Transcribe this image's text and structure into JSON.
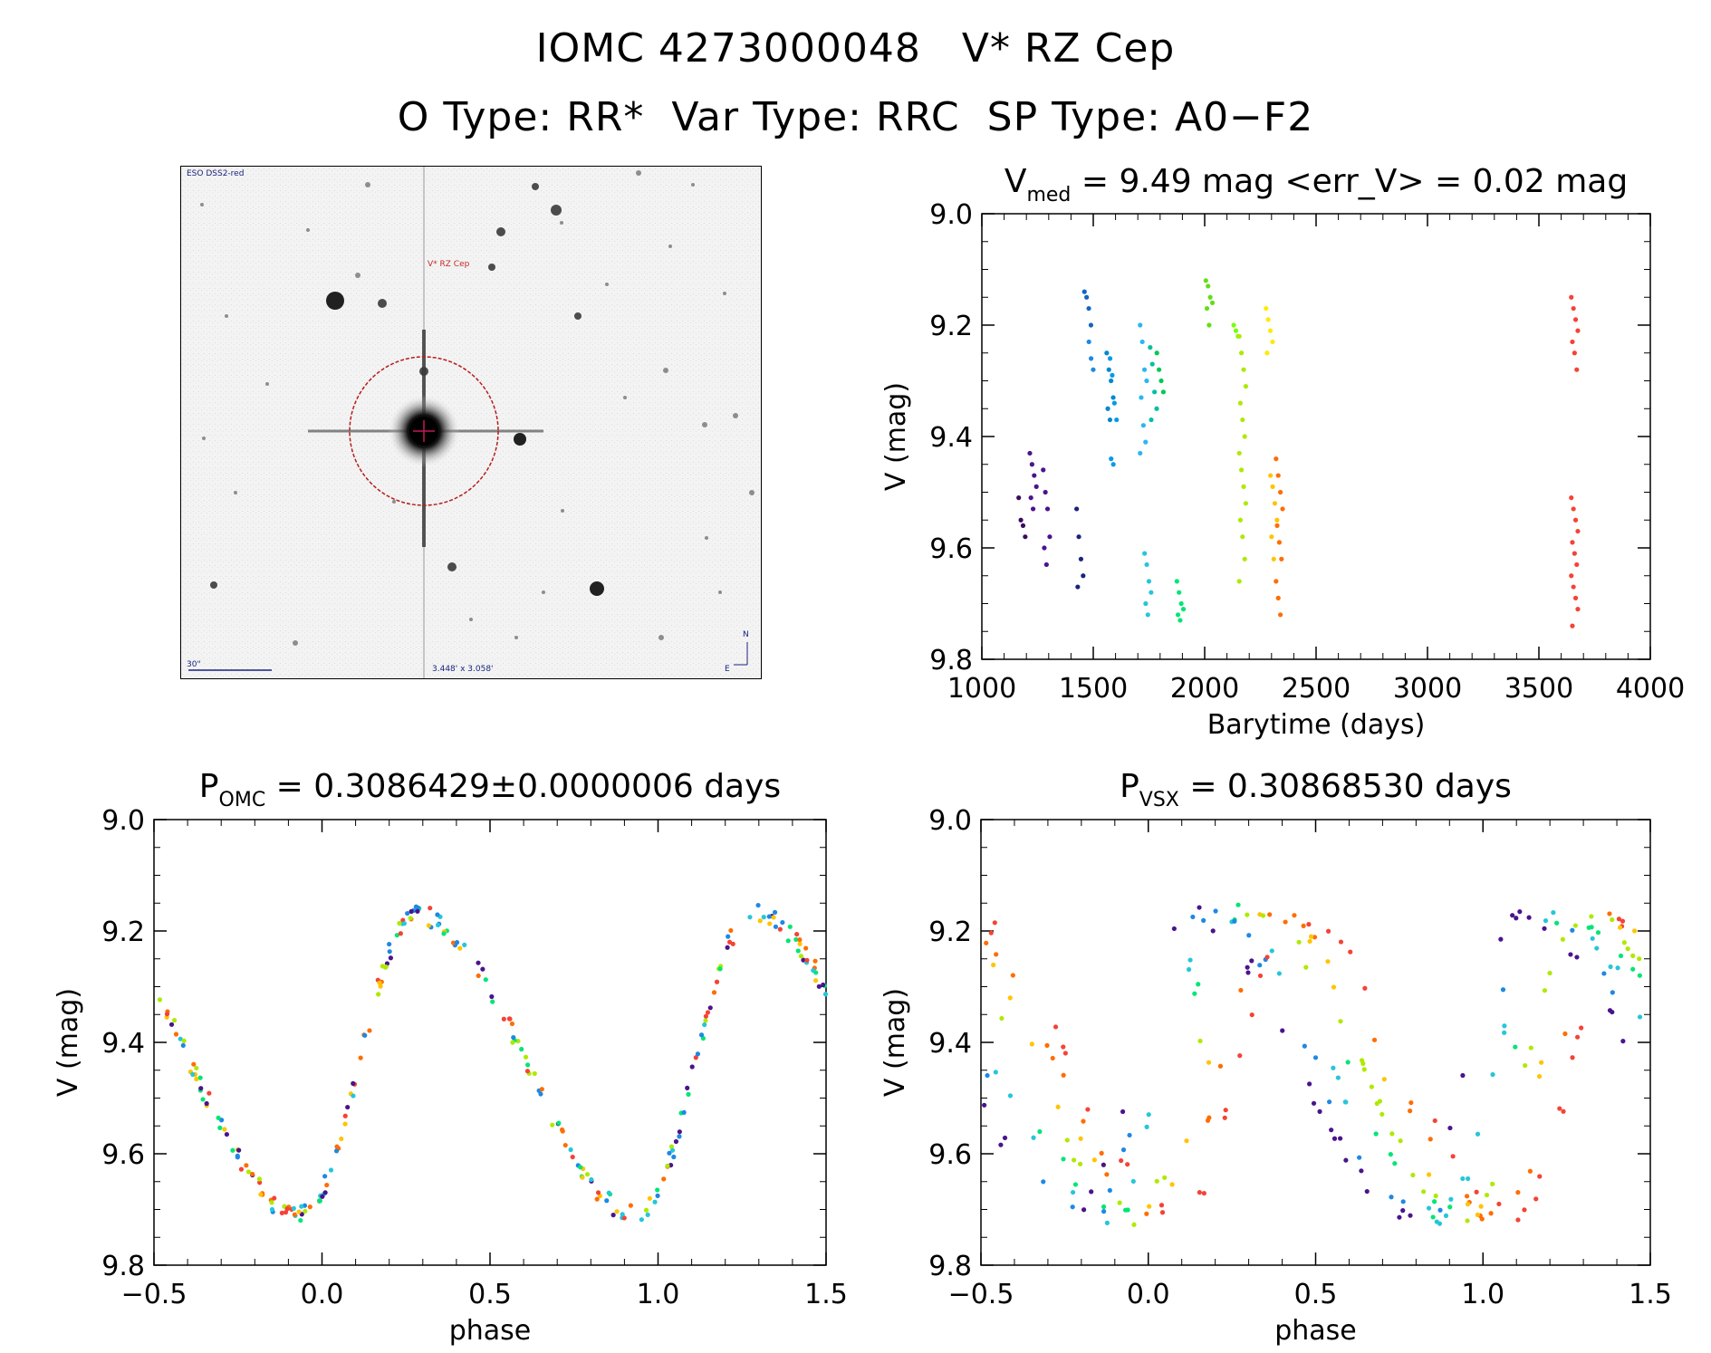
{
  "header": {
    "title_left": "IOMC 4273000048",
    "title_right": "V* RZ Cep",
    "o_type": "O Type: RR*",
    "var_type": "Var Type: RRC",
    "sp_type": "SP Type: A0−F2"
  },
  "finder_chart": {
    "survey_label": "ESO DSS2-red",
    "target_label": "V* RZ Cep",
    "scale_label": "30\"",
    "fov_label": "3.448' x 3.058'",
    "north_label": "N",
    "east_label": "E",
    "circle_color": "#b71c1c",
    "label_color": "#c62828"
  },
  "chart_data": [
    {
      "id": "lightcurve",
      "type": "scatter",
      "title_main": "V",
      "title_sub": "med",
      "title_rest": " = 9.49 mag <err_V> = 0.02 mag",
      "xlabel": "Barytime (days)",
      "ylabel": "V (mag)",
      "xlim": [
        1000,
        4000
      ],
      "ylim": [
        9.8,
        9.0
      ],
      "xticks": [
        "1000",
        "1500",
        "2000",
        "2500",
        "3000",
        "3500",
        "4000"
      ],
      "yticks": [
        "9.0",
        "9.2",
        "9.4",
        "9.6",
        "9.8"
      ],
      "groups": [
        {
          "t": 1180,
          "v": [
            9.51,
            9.55,
            9.56,
            9.58
          ],
          "color": "#3b0b5e"
        },
        {
          "t": 1230,
          "v": [
            9.43,
            9.45,
            9.47,
            9.49,
            9.51,
            9.53
          ],
          "color": "#4a148c"
        },
        {
          "t": 1290,
          "v": [
            9.46,
            9.5,
            9.53,
            9.58,
            9.6,
            9.63
          ],
          "color": "#4a148c"
        },
        {
          "t": 1440,
          "v": [
            9.53,
            9.58,
            9.62,
            9.65,
            9.67
          ],
          "color": "#1a237e"
        },
        {
          "t": 1475,
          "v": [
            9.14,
            9.15,
            9.17,
            9.2
          ],
          "color": "#1565c0"
        },
        {
          "t": 1495,
          "v": [
            9.23,
            9.26,
            9.28
          ],
          "color": "#1e88e5"
        },
        {
          "t": 1575,
          "v": [
            9.25,
            9.28,
            9.3,
            9.33,
            9.35,
            9.37
          ],
          "color": "#0288d1"
        },
        {
          "t": 1590,
          "v": [
            9.26,
            9.29,
            9.34,
            9.37,
            9.44,
            9.45
          ],
          "color": "#039be5"
        },
        {
          "t": 1725,
          "v": [
            9.2,
            9.23,
            9.28,
            9.3,
            9.33,
            9.38,
            9.41,
            9.43
          ],
          "color": "#29b6f6"
        },
        {
          "t": 1745,
          "v": [
            9.61,
            9.63,
            9.66,
            9.68,
            9.7,
            9.72
          ],
          "color": "#26c6da"
        },
        {
          "t": 1770,
          "v": [
            9.24,
            9.27,
            9.32,
            9.35,
            9.37
          ],
          "color": "#00bfa5"
        },
        {
          "t": 1800,
          "v": [
            9.25,
            9.28,
            9.3,
            9.32
          ],
          "color": "#00c853"
        },
        {
          "t": 1890,
          "v": [
            9.66,
            9.68,
            9.7,
            9.71,
            9.72,
            9.73
          ],
          "color": "#00e676"
        },
        {
          "t": 2020,
          "v": [
            9.12,
            9.13,
            9.15,
            9.16,
            9.17,
            9.2
          ],
          "color": "#64dd17"
        },
        {
          "t": 2145,
          "v": [
            9.2,
            9.21,
            9.22
          ],
          "color": "#76ff03"
        },
        {
          "t": 2170,
          "v": [
            9.22,
            9.25,
            9.28,
            9.31,
            9.34,
            9.37,
            9.4,
            9.43,
            9.46,
            9.49,
            9.52,
            9.55,
            9.58,
            9.62,
            9.66
          ],
          "color": "#aeea00"
        },
        {
          "t": 2290,
          "v": [
            9.17,
            9.19,
            9.21,
            9.23,
            9.25
          ],
          "color": "#ffea00"
        },
        {
          "t": 2310,
          "v": [
            9.47,
            9.49,
            9.52,
            9.55,
            9.58,
            9.62
          ],
          "color": "#ffc400"
        },
        {
          "t": 2335,
          "v": [
            9.44,
            9.47,
            9.5,
            9.53,
            9.56,
            9.59,
            9.62,
            9.66,
            9.69,
            9.72
          ],
          "color": "#ff6d00"
        },
        {
          "t": 3660,
          "v": [
            9.15,
            9.17,
            9.19,
            9.21,
            9.23,
            9.25,
            9.28,
            9.51,
            9.53,
            9.55,
            9.57,
            9.59,
            9.61,
            9.63,
            9.65,
            9.67,
            9.69,
            9.71,
            9.74
          ],
          "color": "#f44336"
        }
      ]
    },
    {
      "id": "phase-omc",
      "type": "scatter",
      "title_main": "P",
      "title_sub": "OMC",
      "title_rest": " = 0.3086429±0.0000006 days",
      "xlabel": "phase",
      "ylabel": "V (mag)",
      "xlim": [
        -0.5,
        1.5
      ],
      "ylim": [
        9.8,
        9.0
      ],
      "xticks": [
        "−0.5",
        "0.0",
        "0.5",
        "1.0",
        "1.5"
      ],
      "yticks": [
        "9.0",
        "9.2",
        "9.4",
        "9.6",
        "9.8"
      ],
      "curve": {
        "amp": 0.27,
        "mean": 9.44,
        "min_phase": -0.06,
        "max_phase": 0.28
      },
      "colors": [
        "#f44336",
        "#ff6d00",
        "#ffc400",
        "#aeea00",
        "#00e676",
        "#26c6da",
        "#1e88e5",
        "#4a148c"
      ]
    },
    {
      "id": "phase-vsx",
      "type": "scatter",
      "title_main": "P",
      "title_sub": "VSX",
      "title_rest": " = 0.30868530 days",
      "xlabel": "phase",
      "ylabel": "V (mag)",
      "xlim": [
        -0.5,
        1.5
      ],
      "ylim": [
        9.8,
        9.0
      ],
      "xticks": [
        "−0.5",
        "0.0",
        "0.5",
        "1.0",
        "1.5"
      ],
      "yticks": [
        "9.0",
        "9.2",
        "9.4",
        "9.6",
        "9.8"
      ],
      "colors": [
        "#f44336",
        "#ff6d00",
        "#ffc400",
        "#aeea00",
        "#00e676",
        "#26c6da",
        "#1e88e5",
        "#4a148c"
      ]
    }
  ]
}
